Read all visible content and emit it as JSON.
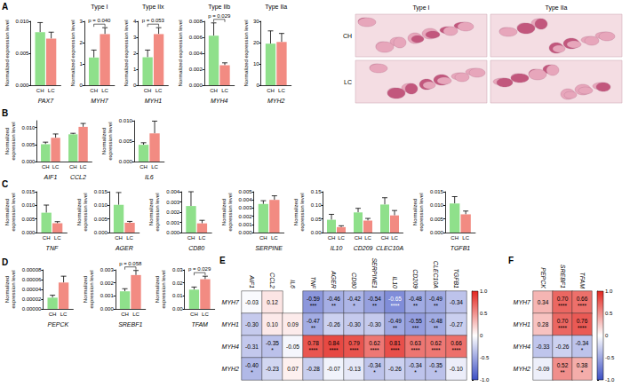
{
  "chart_data": [
    {
      "type": "bar",
      "panel": "A",
      "categories": [
        "PAX7"
      ],
      "y_label": "Normalized expression level",
      "ylim": [
        0,
        0.01
      ],
      "yticks": [
        {
          "value": 0,
          "label": "0.000"
        },
        0.005,
        {
          "value": 0.01,
          "label": "0.010"
        }
      ],
      "series": [
        {
          "name": "CH",
          "color": "#8fe08b",
          "values": [
            0.0083
          ],
          "errors": [
            0.0015
          ]
        },
        {
          "name": "LC",
          "color": "#f28b82",
          "values": [
            0.0073
          ],
          "errors": [
            0.001
          ]
        }
      ]
    },
    {
      "type": "bar",
      "panel": "A",
      "title": "Type I",
      "categories": [
        "MYH7"
      ],
      "y_label": "Normalized expression level",
      "ylim": [
        0,
        3
      ],
      "yticks": [
        0,
        1,
        2,
        3
      ],
      "series": [
        {
          "name": "CH",
          "color": "#8fe08b",
          "values": [
            1.3
          ],
          "errors": [
            0.35
          ]
        },
        {
          "name": "LC",
          "color": "#f28b82",
          "values": [
            2.4
          ],
          "errors": [
            0.3
          ]
        }
      ],
      "annotations": [
        {
          "text": "p = 0.040",
          "category": "MYH7"
        }
      ]
    },
    {
      "type": "bar",
      "panel": "A",
      "title": "Type IIx",
      "categories": [
        "MYH1"
      ],
      "y_label": "Normalized expression level",
      "ylim": [
        0,
        4
      ],
      "yticks": [
        0,
        1,
        2,
        3,
        4
      ],
      "series": [
        {
          "name": "CH",
          "color": "#8fe08b",
          "values": [
            1.75
          ],
          "errors": [
            0.45
          ]
        },
        {
          "name": "LC",
          "color": "#f28b82",
          "values": [
            3.2
          ],
          "errors": [
            0.4
          ]
        }
      ],
      "annotations": [
        {
          "text": "p = 0.053",
          "category": "MYH1"
        }
      ]
    },
    {
      "type": "bar",
      "panel": "A",
      "title": "Type IIb",
      "categories": [
        "MYH4"
      ],
      "y_label": "Normalized expression level",
      "ylim": [
        0,
        0.008
      ],
      "yticks": [
        {
          "value": 0,
          "label": "0.000"
        },
        0.002,
        0.004,
        0.006,
        0.008
      ],
      "series": [
        {
          "name": "CH",
          "color": "#8fe08b",
          "values": [
            0.0062
          ],
          "errors": [
            0.0016
          ]
        },
        {
          "name": "LC",
          "color": "#f28b82",
          "values": [
            0.0025
          ],
          "errors": [
            0.0003
          ]
        }
      ],
      "annotations": [
        {
          "text": "p = 0.029",
          "category": "MYH4"
        }
      ]
    },
    {
      "type": "bar",
      "panel": "A",
      "title": "Type IIa",
      "categories": [
        "MYH2"
      ],
      "y_label": "Normalized expression level",
      "ylim": [
        0,
        30
      ],
      "yticks": [
        0,
        10,
        20,
        30
      ],
      "series": [
        {
          "name": "CH",
          "color": "#8fe08b",
          "values": [
            19.5
          ],
          "errors": [
            6
          ]
        },
        {
          "name": "LC",
          "color": "#f28b82",
          "values": [
            20.3
          ],
          "errors": [
            4
          ]
        }
      ]
    },
    {
      "type": "bar",
      "panel": "B",
      "categories": [
        "AIF1",
        "CCL2"
      ],
      "y_label": "Normalized expression level",
      "ylim": [
        0,
        0.012
      ],
      "yticks": [
        {
          "value": 0,
          "label": "0.000"
        },
        0.005,
        {
          "value": 0.01,
          "label": "0.010"
        }
      ],
      "series": [
        {
          "name": "CH",
          "color": "#8fe08b",
          "values": [
            0.0051,
            0.008
          ],
          "errors": [
            0.0006,
            0.0003
          ]
        },
        {
          "name": "LC",
          "color": "#f28b82",
          "values": [
            0.007,
            0.0102
          ],
          "errors": [
            0.0011,
            0.001
          ]
        }
      ]
    },
    {
      "type": "bar",
      "panel": "B",
      "categories": [
        "IL6"
      ],
      "y_label": "Normalized expression level",
      "ylim": [
        0,
        0.01
      ],
      "yticks": [
        {
          "value": 0,
          "label": "0.000"
        },
        0.005,
        {
          "value": 0.01,
          "label": "0.010"
        }
      ],
      "series": [
        {
          "name": "CH",
          "color": "#8fe08b",
          "values": [
            0.0041
          ],
          "errors": [
            0.0005
          ]
        },
        {
          "name": "LC",
          "color": "#f28b82",
          "values": [
            0.0069
          ],
          "errors": [
            0.003
          ]
        }
      ]
    },
    {
      "type": "bar",
      "panel": "C",
      "categories": [
        "TNF"
      ],
      "y_label": "Normalized expression level",
      "ylim": [
        0,
        0.015
      ],
      "yticks": [
        {
          "value": 0,
          "label": "0.000"
        },
        0.005,
        {
          "value": 0.01,
          "label": "0.010"
        },
        0.015
      ],
      "series": [
        {
          "name": "CH",
          "color": "#8fe08b",
          "values": [
            0.0073
          ],
          "errors": [
            0.0028
          ]
        },
        {
          "name": "LC",
          "color": "#f28b82",
          "values": [
            0.0034
          ],
          "errors": [
            0.0006
          ]
        }
      ]
    },
    {
      "type": "bar",
      "panel": "C",
      "categories": [
        "AGER"
      ],
      "y_label": "Normalized expression level",
      "ylim": [
        0,
        0.015
      ],
      "yticks": [
        {
          "value": 0,
          "label": "0.000"
        },
        0.005,
        {
          "value": 0.01,
          "label": "0.010"
        },
        0.015
      ],
      "series": [
        {
          "name": "CH",
          "color": "#8fe08b",
          "values": [
            0.0102
          ],
          "errors": [
            0.0045
          ]
        },
        {
          "name": "LC",
          "color": "#f28b82",
          "values": [
            0.0036
          ],
          "errors": [
            0.0005
          ]
        }
      ]
    },
    {
      "type": "bar",
      "panel": "C",
      "categories": [
        "CD80"
      ],
      "y_label": "Normalized expression level",
      "ylim": [
        0,
        0.004
      ],
      "yticks": [
        {
          "value": 0,
          "label": "0.000"
        },
        0.001,
        0.002,
        0.003,
        0.004
      ],
      "series": [
        {
          "name": "CH",
          "color": "#8fe08b",
          "values": [
            0.0026
          ],
          "errors": [
            0.0014
          ]
        },
        {
          "name": "LC",
          "color": "#f28b82",
          "values": [
            0.0009
          ],
          "errors": [
            0.0003
          ]
        }
      ]
    },
    {
      "type": "bar",
      "panel": "C",
      "categories": [
        "SERPINE"
      ],
      "y_label": "Normalized expression level",
      "ylim": [
        0,
        0.005
      ],
      "yticks": [
        {
          "value": 0,
          "label": "0.000"
        },
        0.001,
        0.002,
        0.003,
        0.004,
        0.005
      ],
      "series": [
        {
          "name": "CH",
          "color": "#8fe08b",
          "values": [
            0.0035
          ],
          "errors": [
            0.0004
          ]
        },
        {
          "name": "LC",
          "color": "#f28b82",
          "values": [
            0.004
          ],
          "errors": [
            0.0005
          ]
        }
      ]
    },
    {
      "type": "bar",
      "panel": "C",
      "categories": [
        "IL10",
        "CD209",
        "CLEC10A"
      ],
      "y_label": "Normalized expression level",
      "ylim": [
        0,
        0.15
      ],
      "yticks": [
        {
          "value": 0,
          "label": "0.00"
        },
        0.05,
        {
          "value": 0.1,
          "label": "0.10"
        },
        0.15
      ],
      "series": [
        {
          "name": "CH",
          "color": "#8fe08b",
          "values": [
            0.047,
            0.074,
            0.103
          ],
          "errors": [
            0.02,
            0.015,
            0.025
          ]
        },
        {
          "name": "LC",
          "color": "#f28b82",
          "values": [
            0.02,
            0.044,
            0.063
          ],
          "errors": [
            0.005,
            0.008,
            0.018
          ]
        }
      ]
    },
    {
      "type": "bar",
      "panel": "C",
      "categories": [
        "TGFB1"
      ],
      "y_label": "Normalized expression level",
      "ylim": [
        0,
        0.015
      ],
      "yticks": [
        {
          "value": 0,
          "label": "0.000"
        },
        0.005,
        {
          "value": 0.01,
          "label": "0.010"
        },
        0.015
      ],
      "series": [
        {
          "name": "CH",
          "color": "#8fe08b",
          "values": [
            0.0107
          ],
          "errors": [
            0.0025
          ]
        },
        {
          "name": "LC",
          "color": "#f28b82",
          "values": [
            0.0067
          ],
          "errors": [
            0.0012
          ]
        }
      ]
    },
    {
      "type": "bar",
      "panel": "D",
      "categories": [
        "PEPCK"
      ],
      "y_label": "Normalized expression level",
      "ylim": [
        0,
        8e-05
      ],
      "yticks": [
        {
          "value": 0,
          "label": "0.00000"
        },
        2e-05,
        4e-05,
        6e-05,
        8e-05
      ],
      "series": [
        {
          "name": "CH",
          "color": "#8fe08b",
          "values": [
            2.3e-05
          ],
          "errors": [
            5e-06
          ]
        },
        {
          "name": "LC",
          "color": "#f28b82",
          "values": [
            5.4e-05
          ],
          "errors": [
            1.3e-05
          ]
        }
      ]
    },
    {
      "type": "bar",
      "panel": "D",
      "categories": [
        "SREBF1"
      ],
      "y_label": "Normalized expression level",
      "ylim": [
        0,
        0.003
      ],
      "yticks": [
        {
          "value": 0,
          "label": "0.000"
        },
        0.001,
        0.002,
        0.003
      ],
      "series": [
        {
          "name": "CH",
          "color": "#8fe08b",
          "values": [
            0.00135
          ],
          "errors": [
            0.0002
          ]
        },
        {
          "name": "LC",
          "color": "#f28b82",
          "values": [
            0.0026
          ],
          "errors": [
            0.00035
          ]
        }
      ],
      "annotations": [
        {
          "text": "p = 0.058",
          "category": "SREBF1"
        }
      ]
    },
    {
      "type": "bar",
      "panel": "D",
      "categories": [
        "TFAM"
      ],
      "y_label": "Normalized expression level",
      "ylim": [
        0,
        0.03
      ],
      "yticks": [
        {
          "value": 0,
          "label": "0.00"
        },
        0.01,
        0.02,
        0.03
      ],
      "series": [
        {
          "name": "CH",
          "color": "#8fe08b",
          "values": [
            0.0148
          ],
          "errors": [
            0.002
          ]
        },
        {
          "name": "LC",
          "color": "#f28b82",
          "values": [
            0.0228
          ],
          "errors": [
            0.0023
          ]
        }
      ],
      "annotations": [
        {
          "text": "p = 0.029",
          "category": "TFAM"
        }
      ]
    },
    {
      "type": "heatmap",
      "panel": "E",
      "columns": [
        "AIF1",
        "CCL2",
        "IL6",
        "TNF",
        "AGER",
        "CD80",
        "SERPINE1",
        "IL10",
        "CD209",
        "CLEC10A",
        "TGFB1"
      ],
      "rows": [
        "MYH7",
        "MYH1",
        "MYH4",
        "MYH2"
      ],
      "values": [
        [
          -0.03,
          0.12,
          null,
          -0.59,
          -0.46,
          -0.42,
          -0.54,
          -0.65,
          -0.48,
          -0.49,
          -0.34
        ],
        [
          -0.3,
          0.1,
          0.09,
          -0.47,
          -0.26,
          -0.3,
          -0.3,
          -0.49,
          -0.55,
          -0.48,
          -0.27
        ],
        [
          -0.31,
          -0.35,
          -0.05,
          0.78,
          0.84,
          0.79,
          0.62,
          0.81,
          0.63,
          0.62,
          0.66
        ],
        [
          -0.4,
          -0.23,
          0.07,
          -0.28,
          -0.07,
          -0.13,
          -0.34,
          -0.26,
          -0.34,
          -0.35,
          -0.1
        ]
      ],
      "value_labels": [
        [
          "-0.03",
          "0.12",
          null,
          "-0.59",
          "-0.46",
          "-0.42",
          "-0.54",
          "-0.65",
          "-0.48",
          "-0.49",
          "-0.34"
        ],
        [
          "-0.30",
          "0.10",
          "0.09",
          "-0.47",
          "-0.26",
          "-0.30",
          "-0.30",
          "-0.49",
          "-0.55",
          "-0.48",
          "-0.27"
        ],
        [
          "-0.31",
          "-0.35",
          "-0.05",
          "0.78",
          "0.84",
          "0.79",
          "0.62",
          "0.81",
          "0.63",
          "0.62",
          "0.66"
        ],
        [
          "-0.40",
          "-0.23",
          "0.07",
          "-0.28",
          "-0.07",
          "-0.13",
          "-0.34",
          "-0.26",
          "-0.34",
          "-0.35",
          "-0.10"
        ]
      ],
      "stars": [
        [
          null,
          null,
          null,
          "***",
          "**",
          "*",
          "**",
          "****",
          "**",
          "**",
          null
        ],
        [
          null,
          null,
          null,
          "**",
          null,
          null,
          null,
          "**",
          "***",
          "**",
          null
        ],
        [
          null,
          "*",
          null,
          "****",
          "****",
          "****",
          "****",
          "****",
          "****",
          "****",
          "****"
        ],
        [
          "*",
          null,
          null,
          null,
          null,
          null,
          "*",
          null,
          "*",
          "*",
          null
        ]
      ],
      "colors": [
        "#3c4fc4",
        "#ffffff",
        "#e3261f"
      ],
      "colorbar": {
        "lim": [
          -1,
          1
        ],
        "ticks": [
          {
            "value": -1,
            "label": "-1.0"
          },
          -0.5,
          0,
          0.5,
          {
            "value": 1,
            "label": "1.0"
          }
        ]
      }
    },
    {
      "type": "heatmap",
      "panel": "F",
      "columns": [
        "PEPCK",
        "SREBF1",
        "TFAM"
      ],
      "rows": [
        "MYH7",
        "MYH1",
        "MYH4",
        "MYH2"
      ],
      "values": [
        [
          0.34,
          0.7,
          0.66
        ],
        [
          0.28,
          0.7,
          0.76
        ],
        [
          -0.33,
          -0.26,
          -0.34
        ],
        [
          -0.09,
          0.52,
          0.38
        ]
      ],
      "value_labels": [
        [
          "0.34",
          "0.70",
          "0.66"
        ],
        [
          "0.28",
          "0.70",
          "0.76"
        ],
        [
          "-0.33",
          "-0.26",
          "-0.34"
        ],
        [
          "-0.09",
          "0.52",
          "0.38"
        ]
      ],
      "stars": [
        [
          null,
          "****",
          "****"
        ],
        [
          null,
          "****",
          "****"
        ],
        [
          null,
          null,
          "*"
        ],
        [
          null,
          "**",
          "*"
        ]
      ],
      "colors": [
        "#3c4fc4",
        "#ffffff",
        "#e3261f"
      ],
      "colorbar": {
        "lim": [
          -1,
          1
        ],
        "ticks": [
          {
            "value": -1,
            "label": "-1.0"
          },
          -0.5,
          0,
          0.5,
          {
            "value": 1,
            "label": "1.0"
          }
        ]
      }
    }
  ],
  "histology": {
    "panel": "A",
    "columns": [
      "Type I",
      "Type IIa"
    ],
    "rows": [
      "CH",
      "LC"
    ]
  }
}
